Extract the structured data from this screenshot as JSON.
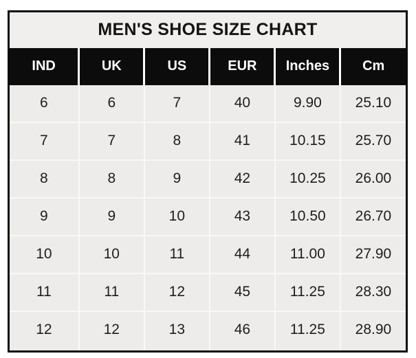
{
  "title": "MEN'S SHOE SIZE CHART",
  "colors": {
    "outer_border": "#0b0b0b",
    "header_bg": "#0c0c0c",
    "header_text": "#ffffff",
    "title_bg": "#f0efed",
    "cell_bg": "#edecea",
    "grid_line": "#f9f8f5",
    "cell_text": "#1d1d1d"
  },
  "chart_data": {
    "type": "table",
    "title": "MEN'S SHOE SIZE CHART",
    "columns": [
      "IND",
      "UK",
      "US",
      "EUR",
      "Inches",
      "Cm"
    ],
    "rows": [
      [
        "6",
        "6",
        "7",
        "40",
        "9.90",
        "25.10"
      ],
      [
        "7",
        "7",
        "8",
        "41",
        "10.15",
        "25.70"
      ],
      [
        "8",
        "8",
        "9",
        "42",
        "10.25",
        "26.00"
      ],
      [
        "9",
        "9",
        "10",
        "43",
        "10.50",
        "26.70"
      ],
      [
        "10",
        "10",
        "11",
        "44",
        "11.00",
        "27.90"
      ],
      [
        "11",
        "11",
        "12",
        "45",
        "11.25",
        "28.30"
      ],
      [
        "12",
        "12",
        "13",
        "46",
        "11.25",
        "28.90"
      ]
    ]
  }
}
